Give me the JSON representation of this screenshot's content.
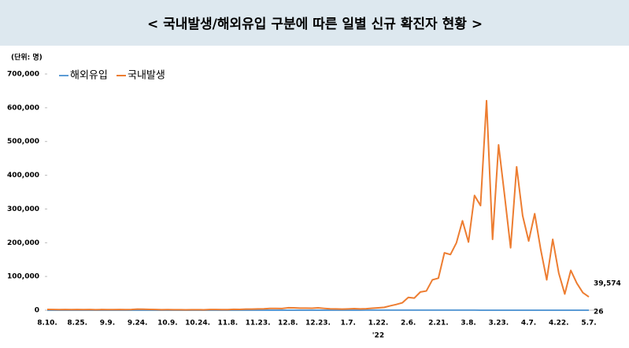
{
  "chart_data": {
    "type": "line",
    "title": "< 국내발생/해외유입 구분에 따른 일별 신규 확진자 현황 >",
    "unit": "(단위: 명)",
    "year_label": "'22",
    "categories": [
      "8.10.",
      null,
      null,
      null,
      null,
      "8.25.",
      null,
      null,
      null,
      null,
      "9.9.",
      null,
      null,
      null,
      null,
      "9.24.",
      null,
      null,
      null,
      null,
      "10.9.",
      null,
      null,
      null,
      null,
      "10.24.",
      null,
      null,
      null,
      null,
      "11.8.",
      null,
      null,
      null,
      null,
      "11.23.",
      null,
      null,
      null,
      null,
      "12.8.",
      null,
      null,
      null,
      null,
      "12.23.",
      null,
      null,
      null,
      null,
      "1.7.",
      null,
      null,
      null,
      null,
      "1.22.",
      null,
      null,
      null,
      null,
      "2.6.",
      null,
      null,
      null,
      null,
      "2.21.",
      null,
      null,
      null,
      null,
      "3.8.",
      null,
      null,
      null,
      null,
      "3.23.",
      null,
      null,
      null,
      null,
      "4.7.",
      null,
      null,
      null,
      null,
      "4.22.",
      null,
      null,
      null,
      null,
      "5.7."
    ],
    "series": [
      {
        "name": "해외유입",
        "color": "#5b9bd5",
        "values": [
          60,
          55,
          70,
          48,
          62,
          58,
          66,
          50,
          72,
          54,
          63,
          57,
          68,
          45,
          70,
          61,
          52,
          74,
          59,
          66,
          48,
          62,
          55,
          71,
          50,
          64,
          58,
          69,
          47,
          60,
          56,
          73,
          49,
          65,
          60,
          52,
          75,
          58,
          67,
          54,
          62,
          70,
          51,
          66,
          58,
          73,
          55,
          69,
          61,
          64,
          80,
          110,
          140,
          170,
          210,
          250,
          300,
          330,
          380,
          410,
          390,
          360,
          350,
          330,
          310,
          290,
          260,
          240,
          220,
          200,
          190,
          170,
          150,
          140,
          120,
          100,
          90,
          80,
          70,
          60,
          55,
          50,
          48,
          45,
          40,
          38,
          35,
          33,
          30,
          28,
          26
        ],
        "value_labels": [
          null,
          null,
          null,
          null,
          null,
          null,
          null,
          null,
          null,
          null,
          null,
          null,
          null,
          null,
          null,
          null,
          null,
          null,
          null,
          null,
          null,
          null,
          null,
          null,
          null,
          null,
          null,
          null,
          null,
          null,
          null,
          null,
          null,
          null,
          null,
          null,
          null,
          null,
          null,
          null,
          null,
          null,
          null,
          null,
          null,
          null,
          null,
          null,
          null,
          null,
          null,
          null,
          null,
          null,
          null,
          null,
          null,
          null,
          null,
          null,
          null,
          null,
          null,
          null,
          null,
          null,
          null,
          null,
          null,
          null,
          null,
          null,
          null,
          null,
          null,
          null,
          null,
          null,
          null,
          null,
          null,
          null,
          null,
          null,
          null,
          null,
          null,
          null,
          null,
          null,
          "26"
        ]
      },
      {
        "name": "국내발생",
        "color": "#ed7d31",
        "values": [
          2200,
          1990,
          1800,
          2150,
          1790,
          2150,
          1840,
          1960,
          1490,
          1940,
          1890,
          1650,
          2050,
          1780,
          2080,
          3270,
          2770,
          2480,
          2080,
          1590,
          1610,
          1420,
          1570,
          1070,
          1440,
          1420,
          1270,
          2110,
          2000,
          1680,
          1760,
          2510,
          2360,
          3290,
          3200,
          3930,
          4110,
          5350,
          5120,
          4940,
          7170,
          7020,
          6230,
          6060,
          5840,
          6920,
          5400,
          4200,
          3830,
          3120,
          3700,
          4540,
          3850,
          4380,
          5800,
          7000,
          8500,
          13000,
          17000,
          22000,
          38000,
          36000,
          54000,
          57000,
          90000,
          95000,
          170000,
          165000,
          200000,
          265000,
          202000,
          340000,
          310000,
          621000,
          210000,
          490000,
          340000,
          185000,
          425000,
          280000,
          205000,
          286000,
          180000,
          90000,
          210000,
          110000,
          48000,
          118000,
          80000,
          52000,
          39574
        ],
        "value_labels": [
          null,
          null,
          null,
          null,
          null,
          null,
          null,
          null,
          null,
          null,
          null,
          null,
          null,
          null,
          null,
          null,
          null,
          null,
          null,
          null,
          null,
          null,
          null,
          null,
          null,
          null,
          null,
          null,
          null,
          null,
          null,
          null,
          null,
          null,
          null,
          null,
          null,
          null,
          null,
          null,
          null,
          null,
          null,
          null,
          null,
          null,
          null,
          null,
          null,
          null,
          null,
          null,
          null,
          null,
          null,
          null,
          null,
          null,
          null,
          null,
          null,
          null,
          null,
          null,
          null,
          null,
          null,
          null,
          null,
          null,
          null,
          null,
          null,
          null,
          null,
          null,
          null,
          null,
          null,
          null,
          null,
          null,
          null,
          null,
          null,
          null,
          null,
          null,
          null,
          null,
          "39,574"
        ]
      }
    ],
    "ylim": [
      0,
      700000
    ],
    "yticks": [
      0,
      {
        "value": 100000,
        "label": "100,000"
      },
      {
        "value": 200000,
        "label": "200,000"
      },
      {
        "value": 300000,
        "label": "300,000"
      },
      {
        "value": 400000,
        "label": "400,000"
      },
      {
        "value": 500000,
        "label": "500,000"
      },
      {
        "value": 600000,
        "label": "600,000"
      },
      {
        "value": 700000,
        "label": "700,000"
      }
    ],
    "grid": false
  }
}
